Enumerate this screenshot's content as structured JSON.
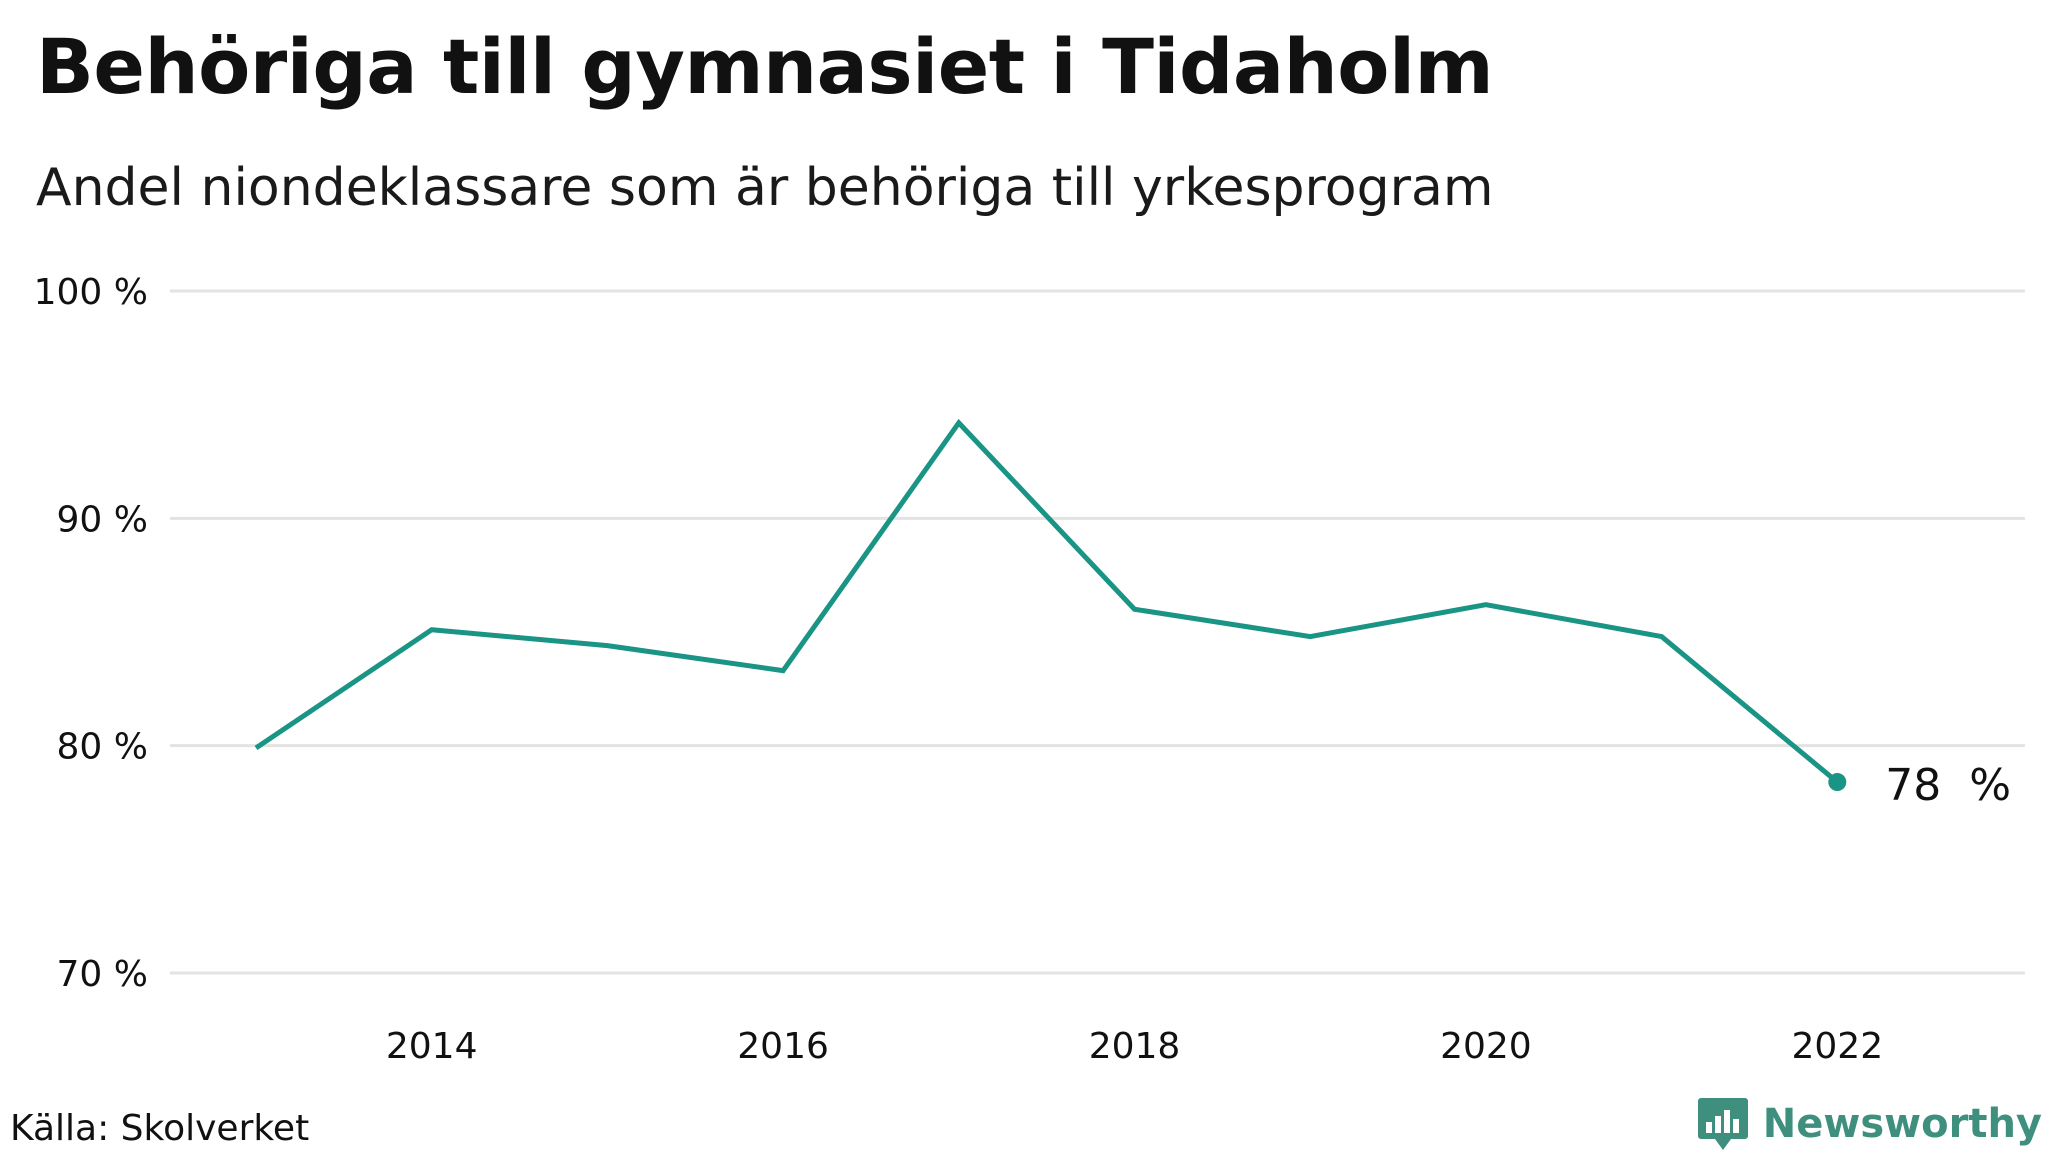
{
  "title": "Behöriga till gymnasiet i Tidaholm",
  "subtitle": "Andel niondeklassare som är behöriga till yrkesprogram",
  "source": "Källa: Skolverket",
  "brand": {
    "label": "Newsworthy",
    "icon": "newsworthy-logo-icon",
    "color": "#3f8f7e"
  },
  "chart_data": {
    "type": "line",
    "x": [
      2013,
      2014,
      2015,
      2016,
      2017,
      2018,
      2019,
      2020,
      2021,
      2022
    ],
    "series": [
      {
        "values": [
          79.9,
          85.1,
          84.4,
          83.3,
          94.2,
          86.0,
          84.8,
          86.2,
          84.8,
          78.4
        ],
        "color": "#1a9484"
      }
    ],
    "ylim": [
      70,
      100
    ],
    "yticks": [
      70,
      80,
      90,
      100
    ],
    "ytick_labels": [
      "70 %",
      "80 %",
      "90 %",
      "100 %"
    ],
    "xticks": [
      2014,
      2016,
      2018,
      2020,
      2022
    ],
    "xtick_labels": [
      "2014",
      "2016",
      "2018",
      "2020",
      "2022"
    ],
    "end_label": "78  %",
    "grid": true,
    "gridline_color": "#e3e3e3"
  }
}
